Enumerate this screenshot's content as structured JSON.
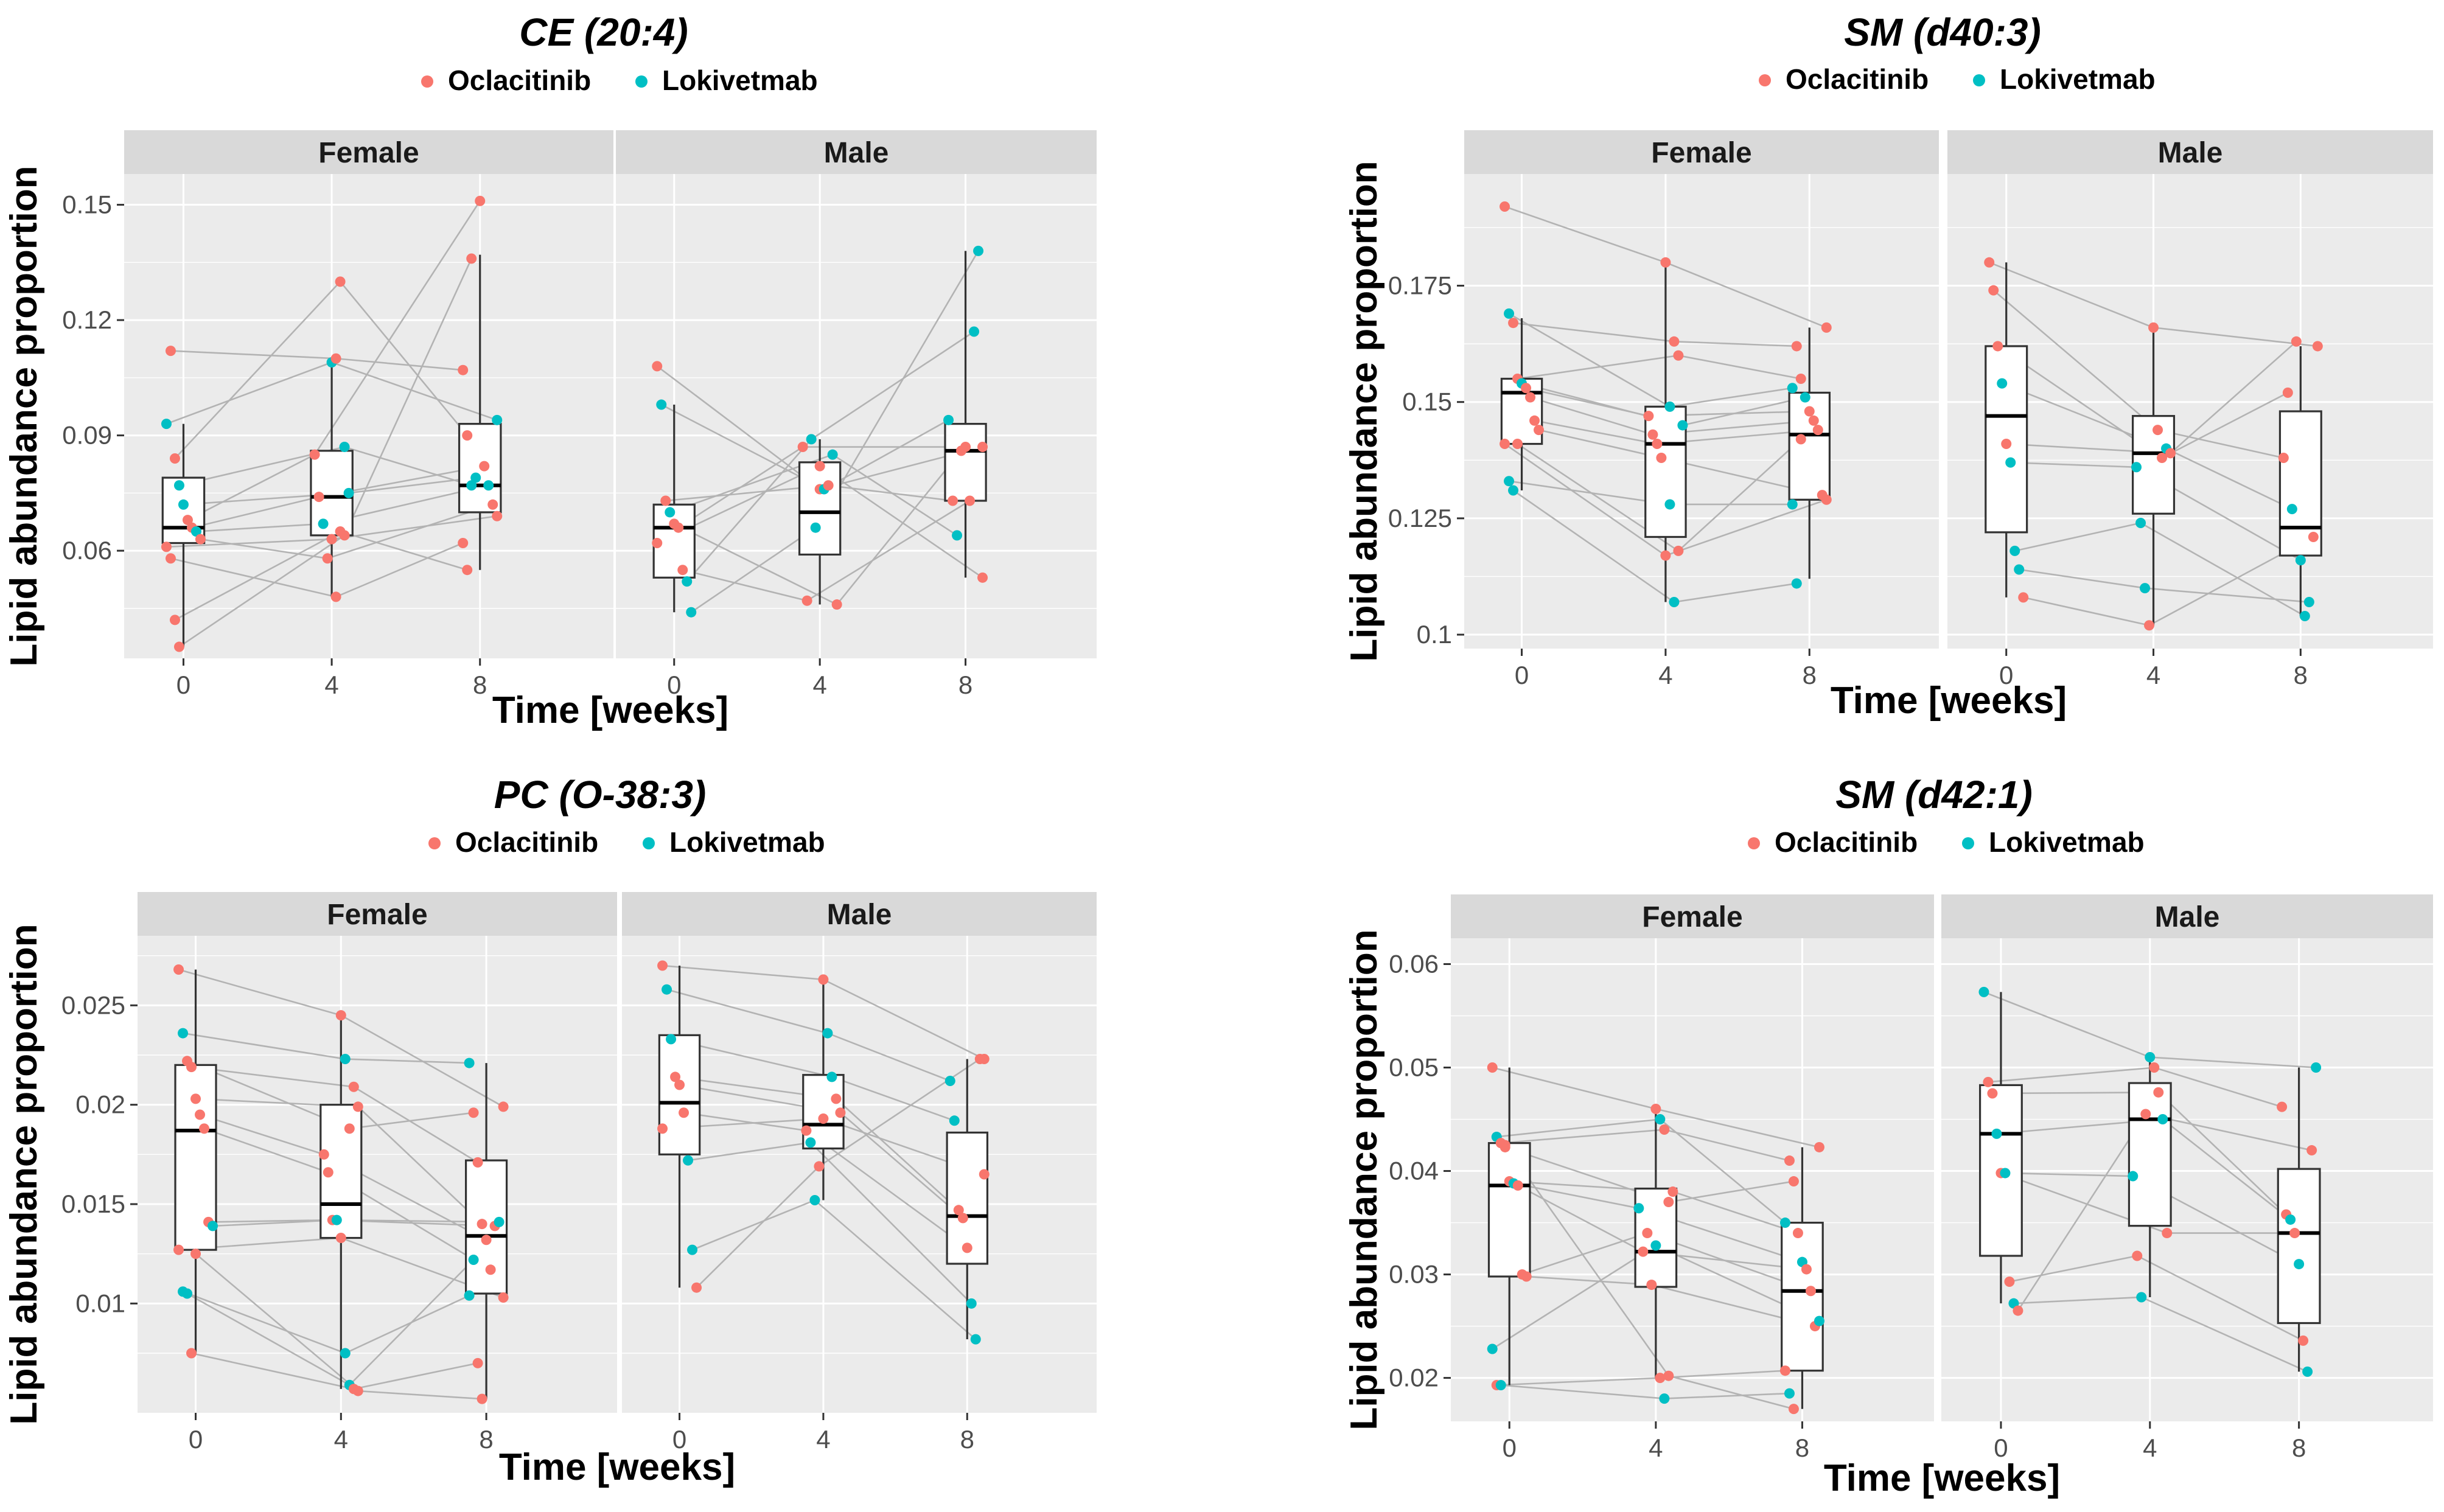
{
  "legend": {
    "groups": [
      "Oclacitinib",
      "Lokivetmab"
    ]
  },
  "colors": {
    "Oclacitinib": "#F8766D",
    "Lokivetmab": "#00BFC4"
  },
  "chart_data": [
    {
      "type": "box+scatter",
      "title": "CE (20:4)",
      "xlabel": "Time [weeks]",
      "ylabel": "Lipid abundance proportion",
      "facets": [
        "Female",
        "Male"
      ],
      "x_ticks": [
        "0",
        "4",
        "8"
      ],
      "ylim": [
        0.032,
        0.158
      ],
      "y_ticks": [
        0.06,
        0.09,
        0.12,
        0.15
      ],
      "y_tick_labels": [
        "0.06",
        "0.09",
        "0.12",
        "0.15"
      ],
      "boxes": {
        "Female": [
          [
            0.035,
            0.062,
            0.066,
            0.079,
            0.093
          ],
          [
            0.048,
            0.064,
            0.074,
            0.086,
            0.109
          ],
          [
            0.055,
            0.07,
            0.077,
            0.093,
            0.137
          ]
        ],
        "Male": [
          [
            0.044,
            0.053,
            0.066,
            0.072,
            0.098
          ],
          [
            0.046,
            0.059,
            0.07,
            0.083,
            0.089
          ],
          [
            0.053,
            0.073,
            0.086,
            0.093,
            0.138
          ]
        ]
      },
      "points": {
        "Female": [
          {
            "g": "Lokivetmab",
            "v": [
              0.093,
              0.109,
              0.094
            ]
          },
          {
            "g": "Oclacitinib",
            "v": [
              0.112,
              0.11,
              0.107
            ]
          },
          {
            "g": "Oclacitinib",
            "v": [
              0.084,
              0.13,
              0.09
            ]
          },
          {
            "g": "Lokivetmab",
            "v": [
              0.077,
              0.087,
              0.077
            ]
          },
          {
            "g": "Lokivetmab",
            "v": [
              0.072,
              0.075,
              0.079
            ]
          },
          {
            "g": "Oclacitinib",
            "v": [
              0.068,
              0.085,
              0.151
            ]
          },
          {
            "g": "Oclacitinib",
            "v": [
              0.066,
              0.074,
              0.082
            ]
          },
          {
            "g": "Lokivetmab",
            "v": [
              0.065,
              0.067,
              0.077
            ]
          },
          {
            "g": "Oclacitinib",
            "v": [
              0.063,
              0.058,
              0.072
            ]
          },
          {
            "g": "Oclacitinib",
            "v": [
              0.061,
              0.063,
              0.069
            ]
          },
          {
            "g": "Oclacitinib",
            "v": [
              0.058,
              0.048,
              0.062
            ]
          },
          {
            "g": "Oclacitinib",
            "v": [
              0.042,
              0.065,
              0.055
            ]
          },
          {
            "g": "Oclacitinib",
            "v": [
              0.035,
              0.064,
              0.136
            ]
          }
        ],
        "Male": [
          {
            "g": "Oclacitinib",
            "v": [
              0.108,
              0.076,
              0.087
            ]
          },
          {
            "g": "Lokivetmab",
            "v": [
              0.098,
              0.076,
              0.094
            ]
          },
          {
            "g": "Oclacitinib",
            "v": [
              0.073,
              0.077,
              0.073
            ]
          },
          {
            "g": "Lokivetmab",
            "v": [
              0.07,
              0.085,
              0.064
            ]
          },
          {
            "g": "Oclacitinib",
            "v": [
              0.067,
              0.046,
              0.086
            ]
          },
          {
            "g": "Oclacitinib",
            "v": [
              0.066,
              0.087,
              0.087
            ]
          },
          {
            "g": "Oclacitinib",
            "v": [
              0.055,
              0.047,
              0.073
            ]
          },
          {
            "g": "Lokivetmab",
            "v": [
              0.052,
              0.089,
              0.117
            ]
          },
          {
            "g": "Lokivetmab",
            "v": [
              0.044,
              0.066,
              0.138
            ]
          },
          {
            "g": "Oclacitinib",
            "v": [
              0.062,
              0.082,
              0.053
            ]
          }
        ]
      }
    },
    {
      "type": "box+scatter",
      "title": "SM (d40:3)",
      "xlabel": "Time [weeks]",
      "ylabel": "Lipid abundance proportion",
      "facets": [
        "Female",
        "Male"
      ],
      "x_ticks": [
        "0",
        "4",
        "8"
      ],
      "ylim": [
        0.097,
        0.199
      ],
      "y_ticks": [
        0.1,
        0.125,
        0.15,
        0.175
      ],
      "y_tick_labels": [
        "0.1",
        "0.125",
        "0.15",
        "0.175"
      ],
      "boxes": {
        "Female": [
          [
            0.131,
            0.141,
            0.152,
            0.155,
            0.168
          ],
          [
            0.107,
            0.121,
            0.141,
            0.149,
            0.18
          ],
          [
            0.112,
            0.129,
            0.143,
            0.152,
            0.166
          ]
        ],
        "Male": [
          [
            0.108,
            0.122,
            0.147,
            0.162,
            0.18
          ],
          [
            0.102,
            0.126,
            0.139,
            0.147,
            0.166
          ],
          [
            0.104,
            0.117,
            0.123,
            0.148,
            0.162
          ]
        ]
      },
      "points": {
        "Female": [
          {
            "g": "Oclacitinib",
            "v": [
              0.192,
              0.18,
              0.166
            ]
          },
          {
            "g": "Lokivetmab",
            "v": [
              0.169,
              0.149,
              0.153
            ]
          },
          {
            "g": "Oclacitinib",
            "v": [
              0.167,
              0.163,
              0.162
            ]
          },
          {
            "g": "Oclacitinib",
            "v": [
              0.155,
              0.16,
              0.155
            ]
          },
          {
            "g": "Lokivetmab",
            "v": [
              0.154,
              0.145,
              0.151
            ]
          },
          {
            "g": "Oclacitinib",
            "v": [
              0.153,
              0.147,
              0.148
            ]
          },
          {
            "g": "Oclacitinib",
            "v": [
              0.151,
              0.143,
              0.146
            ]
          },
          {
            "g": "Oclacitinib",
            "v": [
              0.146,
              0.141,
              0.144
            ]
          },
          {
            "g": "Oclacitinib",
            "v": [
              0.144,
              0.138,
              0.13
            ]
          },
          {
            "g": "Oclacitinib",
            "v": [
              0.141,
              0.117,
              0.129
            ]
          },
          {
            "g": "Lokivetmab",
            "v": [
              0.133,
              0.128,
              0.128
            ]
          },
          {
            "g": "Lokivetmab",
            "v": [
              0.131,
              0.107,
              0.111
            ]
          },
          {
            "g": "Oclacitinib",
            "v": [
              0.141,
              0.118,
              0.142
            ]
          }
        ],
        "Male": [
          {
            "g": "Oclacitinib",
            "v": [
              0.18,
              0.166,
              0.162
            ]
          },
          {
            "g": "Oclacitinib",
            "v": [
              0.174,
              0.144,
              0.138
            ]
          },
          {
            "g": "Oclacitinib",
            "v": [
              0.162,
              0.138,
              0.152
            ]
          },
          {
            "g": "Lokivetmab",
            "v": [
              0.154,
              0.14,
              0.127
            ]
          },
          {
            "g": "Oclacitinib",
            "v": [
              0.141,
              0.139,
              0.163
            ]
          },
          {
            "g": "Lokivetmab",
            "v": [
              0.137,
              0.136,
              0.116
            ]
          },
          {
            "g": "Lokivetmab",
            "v": [
              0.118,
              0.124,
              0.104
            ]
          },
          {
            "g": "Lokivetmab",
            "v": [
              0.114,
              0.11,
              0.107
            ]
          },
          {
            "g": "Oclacitinib",
            "v": [
              0.108,
              0.102,
              0.121
            ]
          }
        ]
      }
    },
    {
      "type": "box+scatter",
      "title": "PC (O-38:3)",
      "xlabel": "Time [weeks]",
      "ylabel": "Lipid abundance proportion",
      "facets": [
        "Female",
        "Male"
      ],
      "x_ticks": [
        "0",
        "4",
        "8"
      ],
      "ylim": [
        0.0045,
        0.0285
      ],
      "y_ticks": [
        0.01,
        0.015,
        0.02,
        0.025
      ],
      "y_tick_labels": [
        "0.01",
        "0.015",
        "0.02",
        "0.025"
      ],
      "boxes": {
        "Female": [
          [
            0.0075,
            0.0127,
            0.0187,
            0.022,
            0.0268
          ],
          [
            0.0057,
            0.0133,
            0.015,
            0.02,
            0.0245
          ],
          [
            0.0052,
            0.0105,
            0.0134,
            0.0172,
            0.0221
          ]
        ],
        "Male": [
          [
            0.0108,
            0.0175,
            0.0201,
            0.0235,
            0.027
          ],
          [
            0.0152,
            0.0178,
            0.019,
            0.0215,
            0.0263
          ],
          [
            0.0082,
            0.012,
            0.0144,
            0.0186,
            0.0223
          ]
        ]
      },
      "points": {
        "Female": [
          {
            "g": "Oclacitinib",
            "v": [
              0.0268,
              0.0245,
              0.0199
            ]
          },
          {
            "g": "Lokivetmab",
            "v": [
              0.0236,
              0.0223,
              0.0221
            ]
          },
          {
            "g": "Oclacitinib",
            "v": [
              0.0222,
              0.0188,
              0.0196
            ]
          },
          {
            "g": "Oclacitinib",
            "v": [
              0.0219,
              0.0209,
              0.0171
            ]
          },
          {
            "g": "Oclacitinib",
            "v": [
              0.0203,
              0.0199,
              0.014
            ]
          },
          {
            "g": "Oclacitinib",
            "v": [
              0.0195,
              0.0175,
              0.0132
            ]
          },
          {
            "g": "Oclacitinib",
            "v": [
              0.0188,
              0.0166,
              0.0117
            ]
          },
          {
            "g": "Oclacitinib",
            "v": [
              0.0141,
              0.0142,
              0.0139
            ]
          },
          {
            "g": "Lokivetmab",
            "v": [
              0.0139,
              0.0142,
              0.0141
            ]
          },
          {
            "g": "Oclacitinib",
            "v": [
              0.0127,
              0.0133,
              0.0103
            ]
          },
          {
            "g": "Lokivetmab",
            "v": [
              0.0106,
              0.0075,
              0.0104
            ]
          },
          {
            "g": "Lokivetmab",
            "v": [
              0.0105,
              0.0059,
              0.0122
            ]
          },
          {
            "g": "Oclacitinib",
            "v": [
              0.0075,
              0.0057,
              0.007
            ]
          },
          {
            "g": "Oclacitinib",
            "v": [
              0.0125,
              0.0056,
              0.0052
            ]
          }
        ],
        "Male": [
          {
            "g": "Oclacitinib",
            "v": [
              0.027,
              0.0263,
              0.0223
            ]
          },
          {
            "g": "Lokivetmab",
            "v": [
              0.0258,
              0.0236,
              0.0212
            ]
          },
          {
            "g": "Lokivetmab",
            "v": [
              0.0233,
              0.0214,
              0.0192
            ]
          },
          {
            "g": "Oclacitinib",
            "v": [
              0.0214,
              0.0203,
              0.0147
            ]
          },
          {
            "g": "Oclacitinib",
            "v": [
              0.021,
              0.0196,
              0.0143
            ]
          },
          {
            "g": "Oclacitinib",
            "v": [
              0.0196,
              0.0187,
              0.0128
            ]
          },
          {
            "g": "Lokivetmab",
            "v": [
              0.0172,
              0.0181,
              0.01
            ]
          },
          {
            "g": "Lokivetmab",
            "v": [
              0.0127,
              0.0152,
              0.0082
            ]
          },
          {
            "g": "Oclacitinib",
            "v": [
              0.0108,
              0.0169,
              0.0223
            ]
          },
          {
            "g": "Oclacitinib",
            "v": [
              0.0188,
              0.0193,
              0.0165
            ]
          }
        ]
      }
    },
    {
      "type": "box+scatter",
      "title": "SM (d42:1)",
      "xlabel": "Time [weeks]",
      "ylabel": "Lipid abundance proportion",
      "facets": [
        "Female",
        "Male"
      ],
      "x_ticks": [
        "0",
        "4",
        "8"
      ],
      "ylim": [
        0.0158,
        0.0625
      ],
      "y_ticks": [
        0.02,
        0.03,
        0.04,
        0.05,
        0.06
      ],
      "y_tick_labels": [
        "0.02",
        "0.03",
        "0.04",
        "0.05",
        "0.06"
      ],
      "boxes": {
        "Female": [
          [
            0.0193,
            0.0298,
            0.0386,
            0.0427,
            0.05
          ],
          [
            0.02,
            0.0288,
            0.0322,
            0.0383,
            0.046
          ],
          [
            0.017,
            0.0207,
            0.0284,
            0.035,
            0.0423
          ]
        ],
        "Male": [
          [
            0.0272,
            0.0318,
            0.0436,
            0.0483,
            0.0573
          ],
          [
            0.0278,
            0.0347,
            0.045,
            0.0485,
            0.051
          ],
          [
            0.0206,
            0.0253,
            0.034,
            0.0402,
            0.05
          ]
        ]
      },
      "points": {
        "Female": [
          {
            "g": "Oclacitinib",
            "v": [
              0.05,
              0.046,
              0.0423
            ]
          },
          {
            "g": "Lokivetmab",
            "v": [
              0.0433,
              0.045,
              0.035
            ]
          },
          {
            "g": "Oclacitinib",
            "v": [
              0.0427,
              0.044,
              0.041
            ]
          },
          {
            "g": "Oclacitinib",
            "v": [
              0.0423,
              0.037,
              0.039
            ]
          },
          {
            "g": "Oclacitinib",
            "v": [
              0.039,
              0.038,
              0.034
            ]
          },
          {
            "g": "Lokivetmab",
            "v": [
              0.0388,
              0.0364,
              0.0312
            ]
          },
          {
            "g": "Oclacitinib",
            "v": [
              0.0386,
              0.0322,
              0.0305
            ]
          },
          {
            "g": "Oclacitinib",
            "v": [
              0.03,
              0.034,
              0.0284
            ]
          },
          {
            "g": "Oclacitinib",
            "v": [
              0.0298,
              0.029,
              0.025
            ]
          },
          {
            "g": "Lokivetmab",
            "v": [
              0.0228,
              0.0328,
              0.0255
            ]
          },
          {
            "g": "Oclacitinib",
            "v": [
              0.0193,
              0.02,
              0.0207
            ]
          },
          {
            "g": "Lokivetmab",
            "v": [
              0.0193,
              0.018,
              0.0185
            ]
          },
          {
            "g": "Oclacitinib",
            "v": [
              0.0425,
              0.0202,
              0.017
            ]
          }
        ],
        "Male": [
          {
            "g": "Lokivetmab",
            "v": [
              0.0573,
              0.051,
              0.05
            ]
          },
          {
            "g": "Oclacitinib",
            "v": [
              0.0486,
              0.05,
              0.0462
            ]
          },
          {
            "g": "Oclacitinib",
            "v": [
              0.0475,
              0.0476,
              0.0358
            ]
          },
          {
            "g": "Lokivetmab",
            "v": [
              0.0436,
              0.045,
              0.0353
            ]
          },
          {
            "g": "Oclacitinib",
            "v": [
              0.0398,
              0.034,
              0.034
            ]
          },
          {
            "g": "Lokivetmab",
            "v": [
              0.0398,
              0.0395,
              0.031
            ]
          },
          {
            "g": "Oclacitinib",
            "v": [
              0.0293,
              0.0318,
              0.0236
            ]
          },
          {
            "g": "Lokivetmab",
            "v": [
              0.0272,
              0.0278,
              0.0206
            ]
          },
          {
            "g": "Oclacitinib",
            "v": [
              0.0265,
              0.0455,
              0.042
            ]
          }
        ]
      }
    }
  ]
}
